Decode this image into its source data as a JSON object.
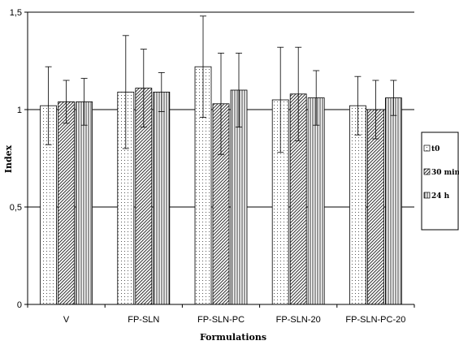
{
  "chart_data": {
    "type": "bar",
    "categories": [
      "V",
      "FP-SLN",
      "FP-SLN-PC",
      "FP-SLN-20",
      "FP-SLN-PC-20"
    ],
    "series": [
      {
        "name": "t0",
        "pattern": "dots",
        "values": [
          1.02,
          1.09,
          1.22,
          1.05,
          1.02
        ],
        "error": [
          0.2,
          0.29,
          0.26,
          0.27,
          0.15
        ]
      },
      {
        "name": "30 min",
        "pattern": "diagonal",
        "values": [
          1.04,
          1.11,
          1.03,
          1.08,
          1.0
        ],
        "error": [
          0.11,
          0.2,
          0.26,
          0.24,
          0.15
        ]
      },
      {
        "name": "24 h",
        "pattern": "vertical",
        "values": [
          1.04,
          1.09,
          1.1,
          1.06,
          1.06
        ],
        "error": [
          0.12,
          0.1,
          0.19,
          0.14,
          0.09
        ]
      }
    ],
    "yticks": [
      "0",
      "0,5",
      "1",
      "1,5"
    ],
    "ytick_values": [
      0,
      0.5,
      1,
      1.5
    ],
    "ylim": [
      0,
      1.5
    ],
    "xlabel": "Formulations",
    "ylabel": "Index",
    "grid": "horizontal",
    "legend_position": "right"
  }
}
